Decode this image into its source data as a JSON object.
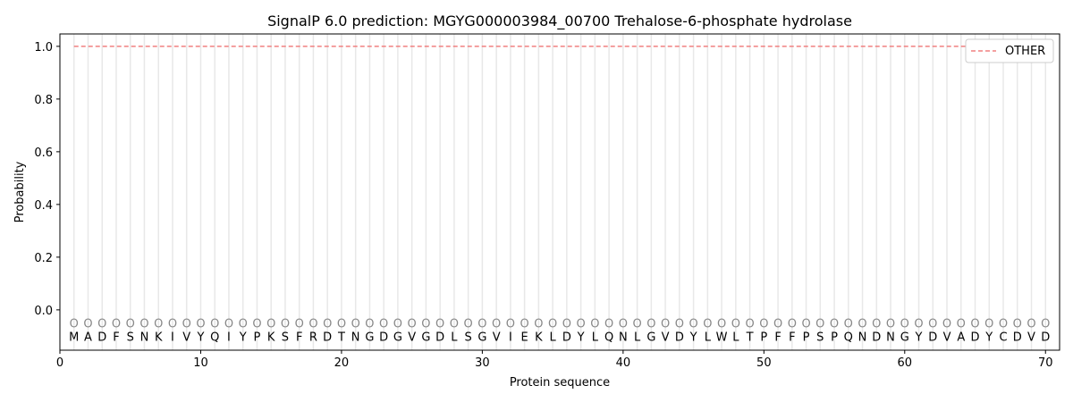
{
  "chart_data": {
    "type": "line",
    "title": "SignalP 6.0 prediction: MGYG000003984_00700 Trehalose-6-phosphate hydrolase",
    "xlabel": "Protein sequence",
    "ylabel": "Probability",
    "xlim": [
      0,
      71
    ],
    "ylim": [
      -0.153,
      1.047
    ],
    "xticks": [
      0,
      10,
      20,
      30,
      40,
      50,
      60,
      70
    ],
    "yticks": [
      0.0,
      0.2,
      0.4,
      0.6,
      0.8,
      1.0
    ],
    "grid": "vertical lines at each residue",
    "legend_position": "top-right",
    "sequence": [
      "M",
      "A",
      "D",
      "F",
      "S",
      "N",
      "K",
      "I",
      "V",
      "Y",
      "Q",
      "I",
      "Y",
      "P",
      "K",
      "S",
      "F",
      "R",
      "D",
      "T",
      "N",
      "G",
      "D",
      "G",
      "V",
      "G",
      "D",
      "L",
      "S",
      "G",
      "V",
      "I",
      "E",
      "K",
      "L",
      "D",
      "Y",
      "L",
      "Q",
      "N",
      "L",
      "G",
      "V",
      "D",
      "Y",
      "L",
      "W",
      "L",
      "T",
      "P",
      "F",
      "F",
      "P",
      "S",
      "P",
      "Q",
      "N",
      "D",
      "N",
      "G",
      "Y",
      "D",
      "V",
      "A",
      "D",
      "Y",
      "C",
      "D",
      "V",
      "D"
    ],
    "predicted_labels": "OOOOOOOOOOOOOOOOOOOOOOOOOOOOOOOOOOOOOOOOOOOOOOOOOOOOOOOOOOOOOOOOOOOOOO",
    "series": [
      {
        "name": "OTHER",
        "color": "#f08080",
        "style": "dashed",
        "x_start": 1,
        "x_end": 70,
        "value": 1.0
      }
    ]
  }
}
